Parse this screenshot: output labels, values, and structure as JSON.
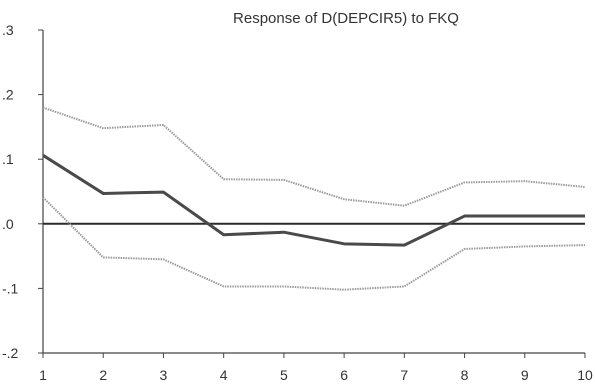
{
  "chart_data": {
    "type": "line",
    "title": "Response of D(DEPCIR5) to FKQ",
    "xlabel": "",
    "ylabel": "",
    "x": [
      1,
      2,
      3,
      4,
      5,
      6,
      7,
      8,
      9,
      10
    ],
    "xlim": [
      1,
      10
    ],
    "ylim": [
      -0.2,
      0.3
    ],
    "yticks": [
      0.3,
      0.2,
      0.1,
      0.0,
      -0.1,
      -0.2
    ],
    "ytick_labels": [
      ".3",
      ".2",
      ".1",
      ".0",
      "-.1",
      "-.2"
    ],
    "xtick_labels": [
      "1",
      "2",
      "3",
      "4",
      "5",
      "6",
      "7",
      "8",
      "9",
      "10"
    ],
    "grid": false,
    "legend": "none",
    "zero_line": 0.0,
    "series": [
      {
        "role": "response",
        "color": "#4a4a4a",
        "values": [
          0.106,
          0.047,
          0.049,
          -0.017,
          -0.013,
          -0.031,
          -0.033,
          0.012,
          0.012,
          0.012
        ]
      },
      {
        "role": "upper-band",
        "color": "#9a9a9a",
        "values": [
          0.18,
          0.148,
          0.153,
          0.069,
          0.068,
          0.038,
          0.028,
          0.064,
          0.066,
          0.057
        ]
      },
      {
        "role": "lower-band",
        "color": "#9a9a9a",
        "values": [
          0.041,
          -0.052,
          -0.055,
          -0.097,
          -0.097,
          -0.102,
          -0.097,
          -0.039,
          -0.035,
          -0.033
        ]
      }
    ]
  }
}
